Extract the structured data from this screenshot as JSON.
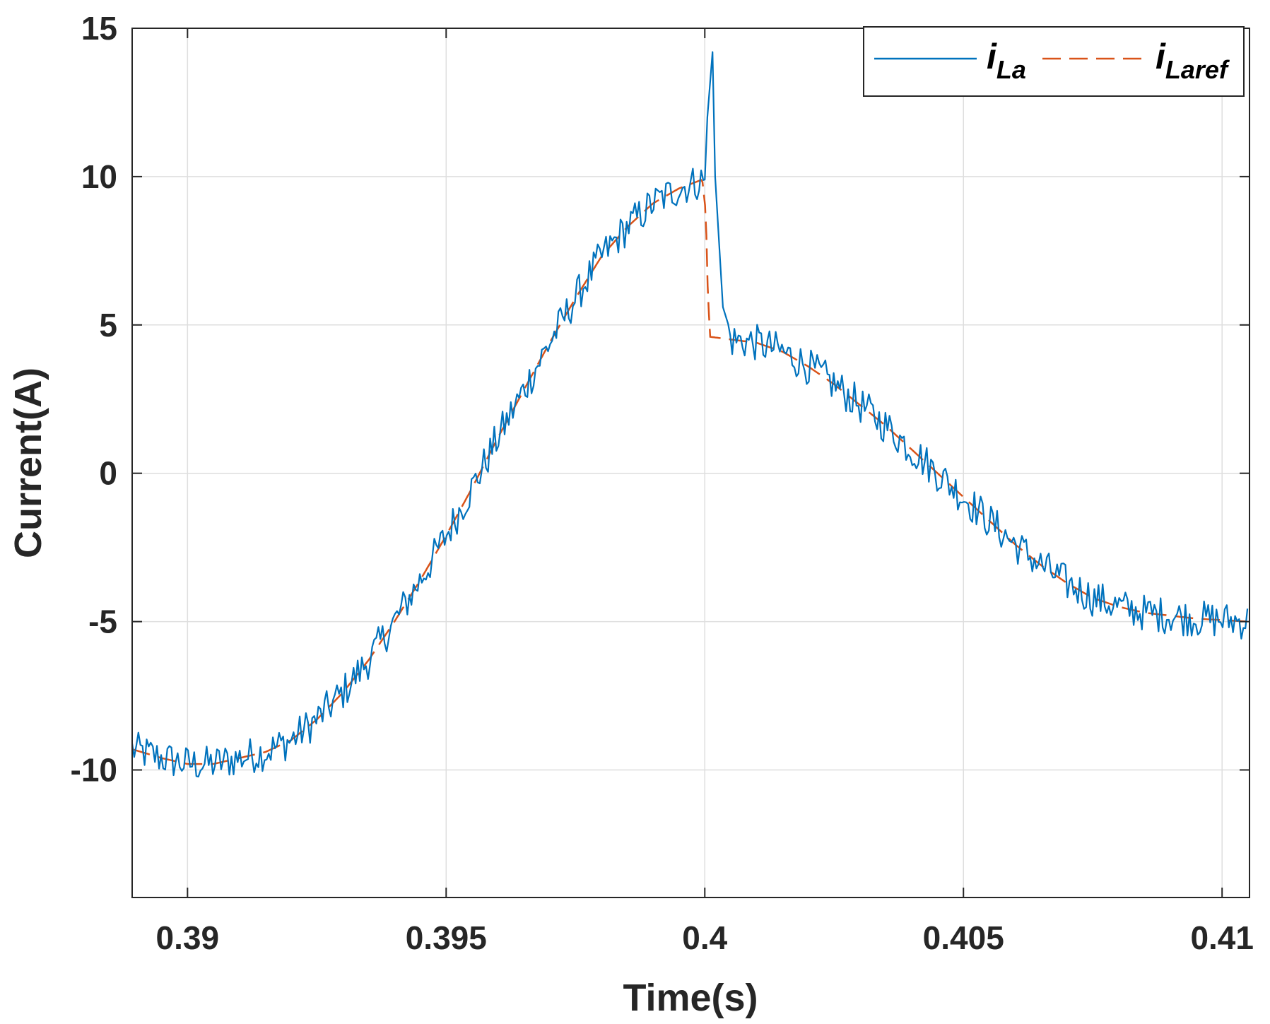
{
  "chart_data": {
    "type": "line",
    "xlabel": "Time(s)",
    "ylabel": "Current(A)",
    "xlim": [
      0.38893,
      0.41053
    ],
    "ylim": [
      -14.3,
      15.0
    ],
    "xticks": [
      0.39,
      0.395,
      0.4,
      0.405,
      0.41
    ],
    "xtick_labels": [
      "0.39",
      "0.395",
      "0.4",
      "0.405",
      "0.41"
    ],
    "yticks": [
      -10,
      -5,
      0,
      5,
      10,
      15
    ],
    "ytick_labels": [
      "-10",
      "-5",
      "0",
      "5",
      "10",
      "15"
    ],
    "grid": true,
    "legend_position": "top-right",
    "legend": [
      {
        "main": "i",
        "sub": "La",
        "style": "solid",
        "color": "#0072BD"
      },
      {
        "main": "i",
        "sub": "Laref",
        "style": "dashed",
        "color": "#D95319"
      }
    ],
    "series": [
      {
        "name": "i_La",
        "color": "#0072BD",
        "style": "solid",
        "noise": "high-frequency ripple around the reference, approximately ±0.6 A",
        "x": [
          0.38893,
          0.3895,
          0.39,
          0.3905,
          0.391,
          0.3915,
          0.392,
          0.3925,
          0.393,
          0.3935,
          0.394,
          0.3945,
          0.395,
          0.3955,
          0.396,
          0.3965,
          0.397,
          0.3975,
          0.398,
          0.3985,
          0.399,
          0.3995,
          0.4,
          0.40005,
          0.40015,
          0.4002,
          0.40035,
          0.4005,
          0.401,
          0.4015,
          0.402,
          0.4025,
          0.403,
          0.4035,
          0.404,
          0.4045,
          0.405,
          0.4055,
          0.406,
          0.4065,
          0.407,
          0.4075,
          0.408,
          0.4085,
          0.409,
          0.4095,
          0.41,
          0.41053
        ],
        "y": [
          -9.3,
          -9.6,
          -9.8,
          -9.8,
          -9.6,
          -9.4,
          -9.0,
          -8.3,
          -7.4,
          -6.3,
          -5.0,
          -3.6,
          -2.1,
          -0.5,
          1.2,
          2.8,
          4.4,
          5.9,
          7.3,
          8.3,
          9.1,
          9.6,
          9.9,
          12.0,
          14.2,
          10.0,
          5.6,
          4.5,
          4.4,
          4.1,
          3.6,
          3.0,
          2.3,
          1.6,
          0.8,
          0.0,
          -0.8,
          -1.6,
          -2.4,
          -3.1,
          -3.7,
          -4.2,
          -4.5,
          -4.7,
          -4.8,
          -4.9,
          -4.95,
          -5.0
        ]
      },
      {
        "name": "i_Laref",
        "color": "#D95319",
        "style": "dashed",
        "x": [
          0.38893,
          0.3895,
          0.39,
          0.3905,
          0.391,
          0.3915,
          0.392,
          0.3925,
          0.393,
          0.3935,
          0.394,
          0.3945,
          0.395,
          0.3955,
          0.396,
          0.3965,
          0.397,
          0.3975,
          0.398,
          0.3985,
          0.399,
          0.3995,
          0.39995,
          0.40002,
          0.40005,
          0.4001,
          0.401,
          0.4015,
          0.402,
          0.4025,
          0.403,
          0.4035,
          0.404,
          0.4045,
          0.405,
          0.4055,
          0.406,
          0.4065,
          0.407,
          0.4075,
          0.408,
          0.4085,
          0.409,
          0.4095,
          0.41,
          0.41053
        ],
        "y": [
          -9.3,
          -9.6,
          -9.8,
          -9.8,
          -9.6,
          -9.4,
          -9.0,
          -8.3,
          -7.4,
          -6.3,
          -5.0,
          -3.6,
          -2.1,
          -0.5,
          1.2,
          2.8,
          4.4,
          5.9,
          7.3,
          8.3,
          9.1,
          9.6,
          9.9,
          8.8,
          6.5,
          4.6,
          4.4,
          4.1,
          3.6,
          3.0,
          2.3,
          1.6,
          0.8,
          0.0,
          -0.8,
          -1.6,
          -2.4,
          -3.1,
          -3.7,
          -4.2,
          -4.5,
          -4.7,
          -4.8,
          -4.9,
          -4.95,
          -5.0
        ]
      }
    ]
  }
}
